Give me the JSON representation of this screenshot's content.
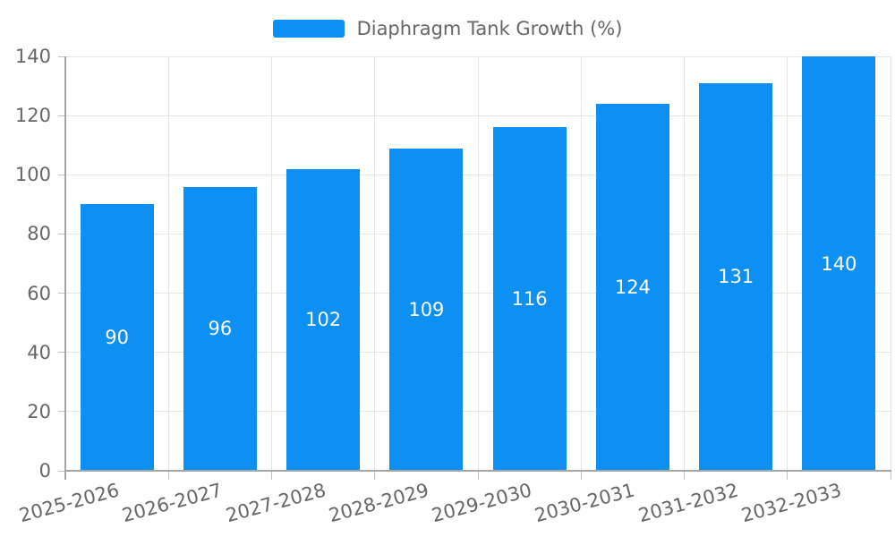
{
  "legend": {
    "label": "Diaphragm Tank Growth (%)"
  },
  "chart_data": {
    "type": "bar",
    "title": "Diaphragm Tank Growth (%)",
    "categories": [
      "2025-2026",
      "2026-2027",
      "2027-2028",
      "2028-2029",
      "2029-2030",
      "2030-2031",
      "2031-2032",
      "2032-2033"
    ],
    "values": [
      90,
      96,
      102,
      109,
      116,
      124,
      131,
      140
    ],
    "series": [
      {
        "name": "Diaphragm Tank Growth (%)",
        "values": [
          90,
          96,
          102,
          109,
          116,
          124,
          131,
          140
        ]
      }
    ],
    "xlabel": "",
    "ylabel": "",
    "ylim": [
      0,
      140
    ],
    "yticks": [
      0,
      20,
      40,
      60,
      80,
      100,
      120,
      140
    ],
    "grid": true,
    "legend_position": "top-center",
    "value_labels": "inside-center",
    "x_label_rotation_deg": -15,
    "colors": {
      "bar": "#0d90f2",
      "bar_label": "#ffffff",
      "axis_label": "#666666",
      "legend_text": "#666666",
      "grid_line": "#e6e6e6",
      "axis_line": "#a6a6a6",
      "tick": "#c2c2c2",
      "background": "#ffffff"
    }
  }
}
